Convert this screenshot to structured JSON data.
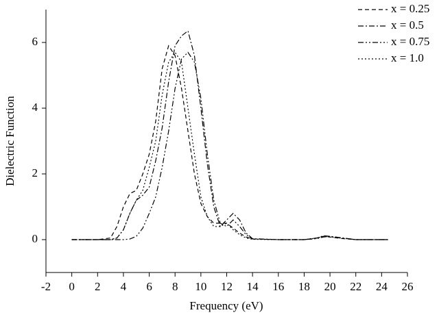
{
  "chart_data": {
    "type": "line",
    "x_label": "Frequency (eV)",
    "y_label": "Dielectric Function",
    "x": [
      0,
      2,
      3,
      3.5,
      4,
      4.5,
      5,
      5.5,
      6,
      6.5,
      7,
      7.5,
      8,
      8.5,
      9,
      9.5,
      10,
      10.5,
      11,
      11.5,
      12,
      12.5,
      13,
      13.5,
      14,
      16,
      18,
      19,
      19.5,
      20,
      21,
      22,
      24.5
    ],
    "series": [
      {
        "name": "x = 0.25",
        "color": "#000000",
        "dash": "6,4",
        "values": [
          0,
          0,
          0.05,
          0.4,
          1.0,
          1.4,
          1.5,
          2.0,
          2.6,
          3.6,
          5.2,
          5.9,
          5.6,
          4.6,
          3.3,
          2.0,
          1.1,
          0.7,
          0.5,
          0.5,
          0.5,
          0.35,
          0.2,
          0.08,
          0.02,
          0,
          0,
          0.05,
          0.1,
          0.08,
          0.03,
          0,
          0
        ]
      },
      {
        "name": "x = 0.5",
        "color": "#000000",
        "dash": "8,3,2,3",
        "values": [
          0,
          0,
          0,
          0.05,
          0.3,
          0.8,
          1.2,
          1.35,
          1.6,
          2.4,
          3.4,
          4.8,
          5.9,
          6.2,
          6.35,
          5.6,
          4.0,
          2.3,
          1.0,
          0.4,
          0.6,
          0.8,
          0.6,
          0.2,
          0.03,
          0,
          0,
          0.05,
          0.12,
          0.1,
          0.05,
          0,
          0
        ]
      },
      {
        "name": "x = 0.75",
        "color": "#000000",
        "dash": "8,3,2,3,2,3",
        "values": [
          0,
          0,
          0,
          0,
          0,
          0.02,
          0.1,
          0.35,
          0.8,
          1.3,
          2.2,
          3.3,
          4.6,
          5.5,
          5.7,
          5.4,
          4.3,
          2.6,
          1.2,
          0.5,
          0.4,
          0.6,
          0.4,
          0.15,
          0.02,
          0,
          0,
          0.03,
          0.08,
          0.1,
          0.05,
          0,
          0
        ]
      },
      {
        "name": "x = 1.0",
        "color": "#000000",
        "dash": "2,3",
        "values": [
          0,
          0,
          0,
          0.05,
          0.3,
          0.8,
          1.2,
          1.5,
          2.2,
          3.0,
          4.4,
          5.4,
          5.7,
          5.4,
          4.0,
          2.6,
          1.3,
          0.7,
          0.4,
          0.4,
          0.5,
          0.3,
          0.15,
          0.05,
          0.01,
          0,
          0,
          0.05,
          0.1,
          0.08,
          0.04,
          0,
          0
        ]
      }
    ],
    "xlim": [
      -2,
      26
    ],
    "xticks": [
      -2,
      0,
      2,
      4,
      6,
      8,
      10,
      12,
      14,
      16,
      18,
      20,
      22,
      24,
      26
    ],
    "ylim": [
      -1,
      7
    ],
    "yticks": [
      0,
      2,
      4,
      6
    ],
    "grid": false,
    "legend": "top-right"
  }
}
